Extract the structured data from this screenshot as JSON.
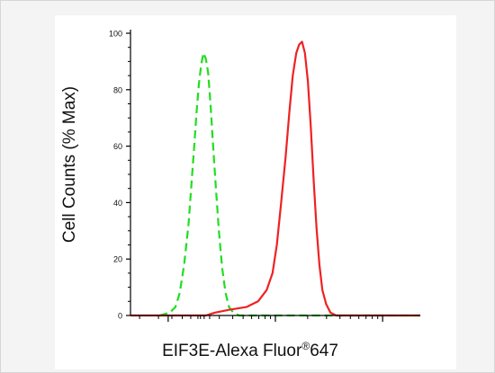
{
  "chart_data": {
    "type": "line",
    "title": "",
    "xlabel_main": "EIF3E-Alexa Fluor",
    "xlabel_sup": "®",
    "xlabel_tail": "647",
    "ylabel": "Cell Counts (% Max)",
    "xscale": "log",
    "xlim": [
      0,
      1
    ],
    "ylim": [
      0,
      100
    ],
    "yticks": [
      0,
      20,
      40,
      60,
      80,
      100
    ],
    "grid": false,
    "legend": "none",
    "series": [
      {
        "style": "dashed",
        "color": "#22dd22",
        "points": [
          [
            0.1,
            0
          ],
          [
            0.135,
            1
          ],
          [
            0.155,
            3
          ],
          [
            0.17,
            8
          ],
          [
            0.185,
            18
          ],
          [
            0.2,
            32
          ],
          [
            0.21,
            46
          ],
          [
            0.22,
            60
          ],
          [
            0.228,
            72
          ],
          [
            0.236,
            82
          ],
          [
            0.244,
            89
          ],
          [
            0.252,
            93
          ],
          [
            0.26,
            91
          ],
          [
            0.268,
            86
          ],
          [
            0.276,
            75
          ],
          [
            0.284,
            62
          ],
          [
            0.294,
            46
          ],
          [
            0.305,
            30
          ],
          [
            0.316,
            17
          ],
          [
            0.328,
            8
          ],
          [
            0.34,
            3
          ],
          [
            0.355,
            1
          ],
          [
            0.375,
            0
          ],
          [
            1.0,
            0
          ]
        ]
      },
      {
        "style": "solid",
        "color": "#ee2222",
        "points": [
          [
            0.0,
            0
          ],
          [
            0.26,
            0
          ],
          [
            0.29,
            1
          ],
          [
            0.34,
            2
          ],
          [
            0.4,
            3
          ],
          [
            0.44,
            5
          ],
          [
            0.47,
            9
          ],
          [
            0.49,
            15
          ],
          [
            0.505,
            25
          ],
          [
            0.52,
            40
          ],
          [
            0.535,
            56
          ],
          [
            0.548,
            72
          ],
          [
            0.56,
            85
          ],
          [
            0.572,
            93
          ],
          [
            0.582,
            96
          ],
          [
            0.592,
            97
          ],
          [
            0.602,
            93
          ],
          [
            0.612,
            83
          ],
          [
            0.622,
            67
          ],
          [
            0.632,
            48
          ],
          [
            0.642,
            31
          ],
          [
            0.652,
            18
          ],
          [
            0.662,
            9
          ],
          [
            0.675,
            4
          ],
          [
            0.69,
            1
          ],
          [
            0.71,
            0
          ],
          [
            1.0,
            0
          ]
        ]
      }
    ]
  }
}
